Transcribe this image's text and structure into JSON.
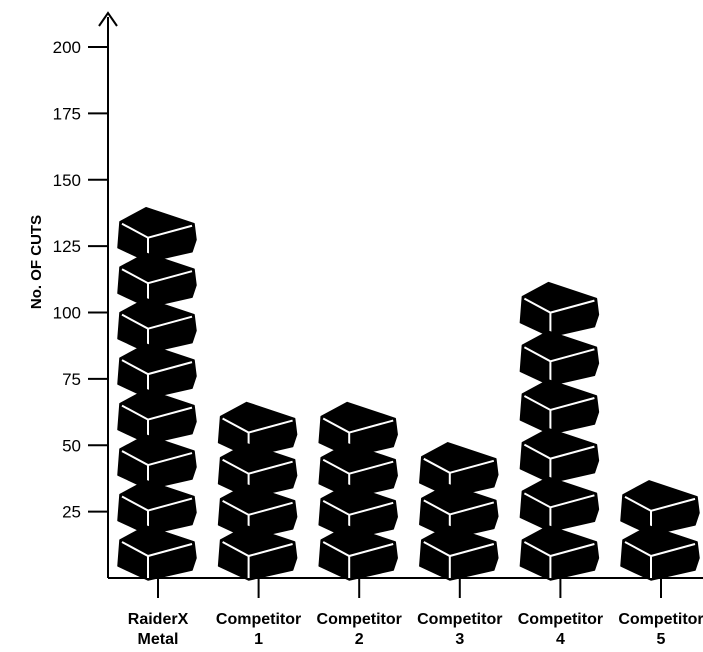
{
  "chart_data": {
    "type": "bar",
    "xlabel": "",
    "ylabel": "No. OF CUTS",
    "yticks": [
      25,
      50,
      75,
      100,
      125,
      150,
      175,
      200
    ],
    "ylim": [
      0,
      200
    ],
    "categories": [
      [
        "RaiderX",
        "Metal"
      ],
      [
        "Competitor",
        "1"
      ],
      [
        "Competitor",
        "2"
      ],
      [
        "Competitor",
        "3"
      ],
      [
        "Competitor",
        "4"
      ],
      [
        "Competitor",
        "5"
      ]
    ],
    "values": [
      137,
      62,
      62,
      47,
      110,
      34
    ],
    "unit_per_block": 17,
    "colors": {
      "block": "#000000",
      "edge": "#ffffff",
      "axis": "#000000"
    }
  }
}
